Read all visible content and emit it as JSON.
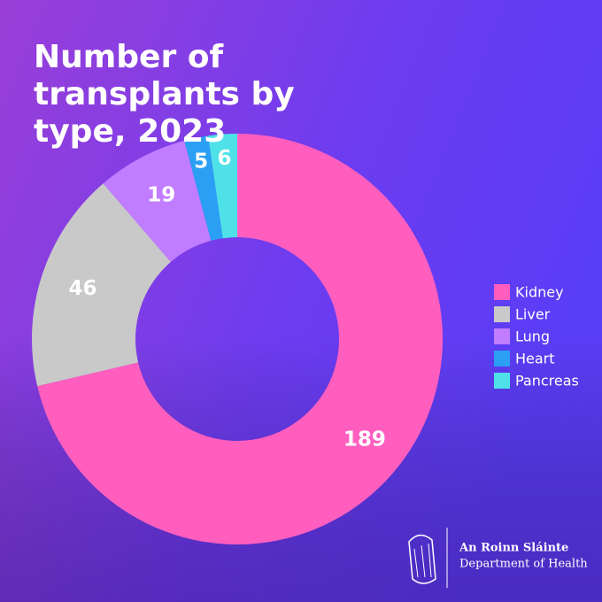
{
  "chart_data": {
    "type": "donut",
    "title": "Number of transplants by type, 2023",
    "categories": [
      "Kidney",
      "Liver",
      "Lung",
      "Heart",
      "Pancreas"
    ],
    "values": [
      189,
      46,
      19,
      5,
      6
    ],
    "colors": [
      "#ff5ebf",
      "#c9c9c9",
      "#c17dff",
      "#2b9ff4",
      "#4fe1e8"
    ],
    "legend": "right"
  },
  "footer": {
    "irish_name": "An Roinn Sláinte",
    "english_name": "Department of Health"
  }
}
